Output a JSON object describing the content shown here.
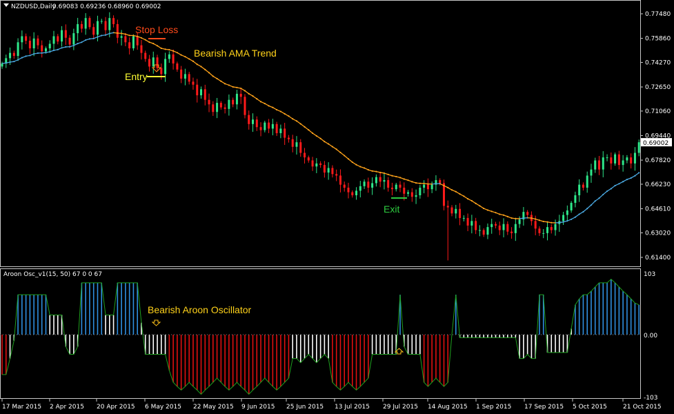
{
  "header": {
    "symbol": "NZDUSD,Daily",
    "ohlc": "0.69083 0.69236 0.68960 0.69002"
  },
  "indicator_header": "Aroon Osc_v1(15, 50) 67 0 0 67",
  "colors": {
    "bull": "#2ee88a",
    "bear": "#ff1a1a",
    "ama_up": "#4aa8e0",
    "ama_down": "#ffa31a",
    "osc_blue": "#2f8fe0",
    "osc_white": "#ffffff",
    "osc_red": "#e01010",
    "osc_line": "#1fa01f",
    "frame": "#c8c8c8"
  },
  "annotations": {
    "stop_loss": "Stop Loss",
    "ama_trend": "Bearish AMA Trend",
    "entry": "Entry",
    "exit": "Exit",
    "aroon": "Bearish Aroon Oscillator"
  },
  "chart_data": [
    {
      "type": "candlestick",
      "title": "NZDUSD,Daily",
      "ylim": [
        0.614,
        0.7748
      ],
      "price_ticks": [
        "0.77480",
        "0.75860",
        "0.74270",
        "0.72650",
        "0.71060",
        "0.69440",
        "0.67820",
        "0.66230",
        "0.64610",
        "0.63020",
        "0.61400"
      ],
      "current_price": "0.69002",
      "date_ticks": [
        "17 Mar 2015",
        "2 Apr 2015",
        "20 Apr 2015",
        "6 May 2015",
        "22 May 2015",
        "9 Jun 2015",
        "25 Jun 2015",
        "13 Jul 2015",
        "29 Jul 2015",
        "14 Aug 2015",
        "1 Sep 2015",
        "17 Sep 2015",
        "5 Oct 2015",
        "21 Oct 2015"
      ],
      "first_open": 0.74,
      "spike_low": {
        "bar": 112,
        "value": 0.612
      },
      "closes": [
        0.742,
        0.7455,
        0.749,
        0.747,
        0.756,
        0.76,
        0.757,
        0.752,
        0.7585,
        0.754,
        0.75,
        0.752,
        0.755,
        0.76,
        0.7565,
        0.764,
        0.759,
        0.7545,
        0.762,
        0.768,
        0.765,
        0.772,
        0.766,
        0.761,
        0.77,
        0.77,
        0.764,
        0.772,
        0.768,
        0.759,
        0.76,
        0.756,
        0.752,
        0.76,
        0.754,
        0.749,
        0.745,
        0.74,
        0.746,
        0.739,
        0.735,
        0.745,
        0.748,
        0.742,
        0.738,
        0.732,
        0.735,
        0.73,
        0.728,
        0.721,
        0.725,
        0.718,
        0.715,
        0.71,
        0.716,
        0.713,
        0.712,
        0.718,
        0.715,
        0.722,
        0.72,
        0.708,
        0.702,
        0.705,
        0.7,
        0.698,
        0.703,
        0.699,
        0.702,
        0.696,
        0.699,
        0.693,
        0.692,
        0.687,
        0.69,
        0.683,
        0.68,
        0.678,
        0.674,
        0.676,
        0.675,
        0.67,
        0.673,
        0.669,
        0.668,
        0.662,
        0.66,
        0.657,
        0.655,
        0.658,
        0.661,
        0.664,
        0.66,
        0.663,
        0.667,
        0.664,
        0.665,
        0.66,
        0.659,
        0.662,
        0.66,
        0.656,
        0.657,
        0.654,
        0.655,
        0.66,
        0.662,
        0.659,
        0.662,
        0.665,
        0.663,
        0.648,
        0.647,
        0.643,
        0.646,
        0.64,
        0.64,
        0.635,
        0.638,
        0.632,
        0.632,
        0.629,
        0.634,
        0.636,
        0.635,
        0.632,
        0.636,
        0.631,
        0.63,
        0.636,
        0.639,
        0.644,
        0.642,
        0.638,
        0.633,
        0.63,
        0.63,
        0.634,
        0.632,
        0.636,
        0.638,
        0.642,
        0.645,
        0.65,
        0.655,
        0.662,
        0.66,
        0.668,
        0.672,
        0.678,
        0.672,
        0.68,
        0.68,
        0.676,
        0.682,
        0.675,
        0.678,
        0.68,
        0.676,
        0.683,
        0.69
      ]
    },
    {
      "type": "bar",
      "title": "Aroon Osc_v1(15, 50)",
      "ylim": [
        -103,
        103
      ],
      "y_ticks": [
        "103",
        "0.00",
        "-103"
      ],
      "values": [
        -67,
        -67,
        -40,
        -10,
        67,
        67,
        67,
        67,
        67,
        67,
        67,
        67,
        33,
        33,
        33,
        33,
        -20,
        -33,
        -33,
        -20,
        87,
        87,
        87,
        87,
        87,
        87,
        33,
        33,
        33,
        87,
        87,
        87,
        87,
        87,
        87,
        20,
        -33,
        -33,
        -33,
        -33,
        -33,
        -33,
        -60,
        -80,
        -87,
        -93,
        -87,
        -80,
        -87,
        -93,
        -100,
        -93,
        -87,
        -80,
        -73,
        -80,
        -87,
        -93,
        -87,
        -80,
        -87,
        -93,
        -100,
        -93,
        -87,
        -80,
        -73,
        -80,
        -87,
        -93,
        -87,
        -80,
        -73,
        -40,
        -40,
        -47,
        -40,
        -33,
        -40,
        -47,
        -40,
        -33,
        -40,
        -80,
        -87,
        -93,
        -87,
        -80,
        -87,
        -93,
        -87,
        -80,
        -73,
        -33,
        -33,
        -33,
        -33,
        -33,
        -33,
        -33,
        67,
        -20,
        -33,
        -33,
        -33,
        -33,
        -80,
        -87,
        -80,
        -73,
        -80,
        -87,
        -80,
        0,
        67,
        -5,
        -5,
        -5,
        -5,
        -5,
        -5,
        -5,
        -5,
        -5,
        -5,
        -5,
        -5,
        -5,
        -5,
        -5,
        -40,
        -40,
        -33,
        -40,
        -40,
        67,
        67,
        -30,
        -30,
        -30,
        -30,
        -30,
        -30,
        10,
        50,
        60,
        67,
        67,
        73,
        80,
        87,
        87,
        87,
        93,
        87,
        80,
        73,
        67,
        60,
        53,
        50
      ]
    }
  ]
}
